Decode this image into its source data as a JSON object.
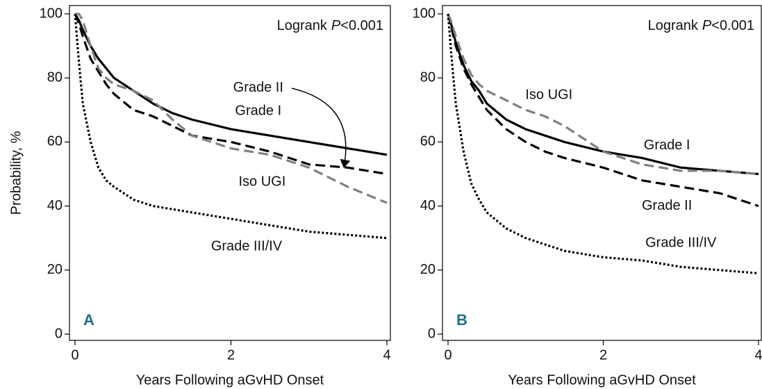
{
  "chart_data": [
    {
      "type": "line",
      "panel": "A",
      "annotation": {
        "prefix": "Logrank",
        "italic": "P",
        "suffix": "<0.001"
      },
      "xlabel": "Years Following aGvHD Onset",
      "ylabel": "Probability, %",
      "x": [
        0,
        0.05,
        0.1,
        0.2,
        0.3,
        0.4,
        0.5,
        0.75,
        1,
        1.25,
        1.5,
        2,
        2.5,
        3,
        3.5,
        4
      ],
      "xlim": [
        0,
        4
      ],
      "xticks": [
        0,
        2,
        4
      ],
      "ylim": [
        0,
        100
      ],
      "yticks": [
        0,
        20,
        40,
        60,
        80,
        100
      ],
      "series": [
        {
          "name": "Grade I",
          "color": "#000000",
          "line_style": "solid",
          "values": [
            100,
            98,
            95,
            90,
            86,
            83,
            80,
            76,
            72,
            69,
            67,
            64,
            62,
            60,
            58,
            56
          ]
        },
        {
          "name": "Grade II",
          "color": "#000000",
          "line_style": "dashed",
          "values": [
            100,
            97,
            93,
            86,
            82,
            78,
            75,
            70,
            68,
            65,
            62,
            60,
            57,
            53,
            52,
            50
          ]
        },
        {
          "name": "Iso UGI",
          "color": "#808080",
          "line_style": "dashed",
          "values": [
            100,
            100,
            98,
            90,
            83,
            80,
            78,
            76,
            73,
            67,
            62,
            58,
            56,
            52,
            46,
            41
          ]
        },
        {
          "name": "Grade III/IV",
          "color": "#000000",
          "line_style": "dotted",
          "values": [
            100,
            85,
            72,
            60,
            52,
            48,
            46,
            42,
            40,
            39,
            38,
            36,
            34,
            32,
            31,
            30
          ]
        }
      ]
    },
    {
      "type": "line",
      "panel": "B",
      "annotation": {
        "prefix": "Logrank",
        "italic": "P",
        "suffix": "<0.001"
      },
      "xlabel": "Years Following aGvHD Onset",
      "x": [
        0,
        0.05,
        0.1,
        0.2,
        0.3,
        0.4,
        0.5,
        0.75,
        1,
        1.25,
        1.5,
        2,
        2.5,
        3,
        3.5,
        4
      ],
      "xlim": [
        0,
        4
      ],
      "xticks": [
        0,
        2,
        4
      ],
      "ylim": [
        0,
        100
      ],
      "yticks": [
        0,
        20,
        40,
        60,
        80,
        100
      ],
      "series": [
        {
          "name": "Grade I",
          "color": "#000000",
          "line_style": "solid",
          "values": [
            100,
            96,
            91,
            84,
            79,
            76,
            72,
            67,
            64,
            62,
            60,
            57,
            55,
            52,
            51,
            50
          ]
        },
        {
          "name": "Grade II",
          "color": "#000000",
          "line_style": "dashed",
          "values": [
            100,
            95,
            90,
            83,
            78,
            74,
            70,
            64,
            60,
            57,
            55,
            52,
            48,
            46,
            44,
            40
          ]
        },
        {
          "name": "Iso UGI",
          "color": "#808080",
          "line_style": "dashed",
          "values": [
            100,
            97,
            93,
            86,
            81,
            78,
            76,
            73,
            70,
            68,
            65,
            57,
            53,
            51,
            51,
            50
          ]
        },
        {
          "name": "Grade III/IV",
          "color": "#000000",
          "line_style": "dotted",
          "values": [
            100,
            85,
            72,
            57,
            47,
            42,
            38,
            33,
            30,
            28,
            26,
            24,
            23,
            21,
            20,
            19
          ]
        }
      ]
    }
  ]
}
